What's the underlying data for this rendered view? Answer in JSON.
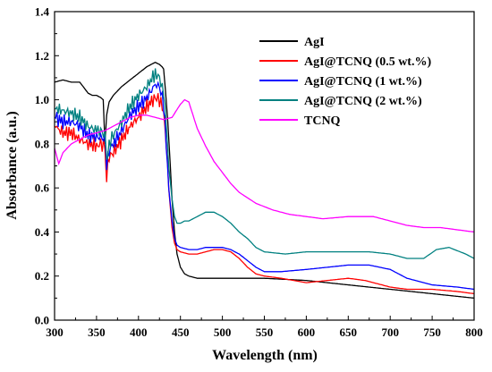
{
  "chart_data": {
    "type": "line",
    "title": "",
    "xlabel": "Wavelength (nm)",
    "ylabel": "Absorbance (a.u.)",
    "xlim": [
      300,
      800
    ],
    "ylim": [
      0.0,
      1.4
    ],
    "xticks": [
      "300",
      "350",
      "400",
      "450",
      "500",
      "550",
      "600",
      "650",
      "700",
      "750",
      "800"
    ],
    "yticks": [
      "0.0",
      "0.2",
      "0.4",
      "0.6",
      "0.8",
      "1.0",
      "1.2",
      "1.4"
    ],
    "grid": false,
    "legend_position": "top-right",
    "series": [
      {
        "name": "AgI",
        "color": "#000000",
        "x": [
          300,
          310,
          320,
          330,
          340,
          345,
          350,
          355,
          358,
          360,
          362,
          365,
          370,
          380,
          390,
          400,
          410,
          415,
          420,
          425,
          428,
          430,
          432,
          435,
          438,
          440,
          443,
          446,
          450,
          455,
          460,
          470,
          480,
          500,
          550,
          600,
          650,
          700,
          750,
          800
        ],
        "y": [
          1.08,
          1.09,
          1.08,
          1.08,
          1.03,
          1.02,
          1.02,
          1.01,
          1.0,
          0.8,
          0.93,
          0.99,
          1.02,
          1.06,
          1.09,
          1.12,
          1.15,
          1.16,
          1.17,
          1.16,
          1.15,
          1.14,
          1.05,
          0.9,
          0.7,
          0.55,
          0.4,
          0.3,
          0.24,
          0.21,
          0.2,
          0.19,
          0.19,
          0.19,
          0.19,
          0.18,
          0.16,
          0.14,
          0.12,
          0.1
        ]
      },
      {
        "name": "AgI@TCNQ (0.5 wt.%)",
        "color": "#ff0000",
        "x": [
          300,
          310,
          320,
          330,
          340,
          350,
          355,
          360,
          362,
          365,
          370,
          380,
          390,
          400,
          410,
          420,
          425,
          430,
          433,
          436,
          440,
          443,
          446,
          450,
          460,
          470,
          480,
          490,
          500,
          510,
          520,
          530,
          540,
          550,
          570,
          600,
          625,
          650,
          670,
          700,
          720,
          750,
          780,
          800
        ],
        "y": [
          0.88,
          0.85,
          0.85,
          0.82,
          0.8,
          0.79,
          0.8,
          0.79,
          0.66,
          0.74,
          0.76,
          0.82,
          0.88,
          0.92,
          0.97,
          1.01,
          1.0,
          0.95,
          0.8,
          0.6,
          0.42,
          0.35,
          0.32,
          0.31,
          0.3,
          0.3,
          0.31,
          0.32,
          0.32,
          0.31,
          0.28,
          0.24,
          0.21,
          0.2,
          0.19,
          0.17,
          0.18,
          0.19,
          0.18,
          0.15,
          0.14,
          0.14,
          0.13,
          0.12
        ]
      },
      {
        "name": "AgI@TCNQ (1 wt.%)",
        "color": "#0000ff",
        "x": [
          300,
          310,
          320,
          330,
          340,
          350,
          355,
          360,
          362,
          365,
          370,
          380,
          390,
          400,
          410,
          420,
          425,
          430,
          433,
          436,
          440,
          443,
          446,
          450,
          460,
          470,
          480,
          490,
          500,
          510,
          520,
          530,
          540,
          550,
          570,
          600,
          625,
          650,
          675,
          700,
          720,
          750,
          780,
          800
        ],
        "y": [
          0.92,
          0.9,
          0.9,
          0.88,
          0.84,
          0.83,
          0.83,
          0.82,
          0.7,
          0.77,
          0.8,
          0.86,
          0.93,
          0.97,
          1.01,
          1.07,
          1.06,
          0.98,
          0.8,
          0.6,
          0.45,
          0.37,
          0.34,
          0.33,
          0.32,
          0.32,
          0.33,
          0.33,
          0.33,
          0.32,
          0.3,
          0.27,
          0.24,
          0.22,
          0.22,
          0.23,
          0.24,
          0.25,
          0.25,
          0.23,
          0.19,
          0.16,
          0.15,
          0.14
        ]
      },
      {
        "name": "AgI@TCNQ (2 wt.%)",
        "color": "#008080",
        "x": [
          300,
          310,
          320,
          330,
          340,
          350,
          355,
          360,
          362,
          365,
          370,
          380,
          390,
          400,
          410,
          420,
          425,
          430,
          433,
          436,
          440,
          443,
          446,
          450,
          455,
          460,
          470,
          480,
          490,
          500,
          510,
          520,
          530,
          540,
          550,
          575,
          600,
          625,
          650,
          675,
          700,
          720,
          740,
          755,
          770,
          790,
          800
        ],
        "y": [
          0.96,
          0.95,
          0.94,
          0.92,
          0.88,
          0.86,
          0.86,
          0.84,
          0.72,
          0.8,
          0.84,
          0.9,
          0.97,
          1.02,
          1.06,
          1.12,
          1.1,
          1.03,
          0.9,
          0.7,
          0.55,
          0.47,
          0.44,
          0.44,
          0.45,
          0.45,
          0.47,
          0.49,
          0.49,
          0.47,
          0.44,
          0.4,
          0.37,
          0.33,
          0.31,
          0.3,
          0.31,
          0.31,
          0.31,
          0.31,
          0.3,
          0.28,
          0.28,
          0.32,
          0.33,
          0.3,
          0.28
        ]
      },
      {
        "name": "TCNQ",
        "color": "#ff00ff",
        "x": [
          300,
          305,
          310,
          320,
          330,
          340,
          350,
          360,
          370,
          380,
          390,
          400,
          410,
          420,
          430,
          440,
          450,
          455,
          460,
          465,
          470,
          480,
          490,
          500,
          510,
          520,
          540,
          560,
          580,
          600,
          620,
          650,
          680,
          700,
          720,
          740,
          760,
          780,
          800
        ],
        "y": [
          0.78,
          0.71,
          0.76,
          0.8,
          0.82,
          0.84,
          0.85,
          0.86,
          0.88,
          0.9,
          0.92,
          0.93,
          0.93,
          0.92,
          0.91,
          0.92,
          0.98,
          1.0,
          0.99,
          0.93,
          0.87,
          0.79,
          0.72,
          0.67,
          0.62,
          0.58,
          0.53,
          0.5,
          0.48,
          0.47,
          0.46,
          0.47,
          0.47,
          0.45,
          0.43,
          0.42,
          0.42,
          0.41,
          0.4
        ]
      }
    ]
  }
}
